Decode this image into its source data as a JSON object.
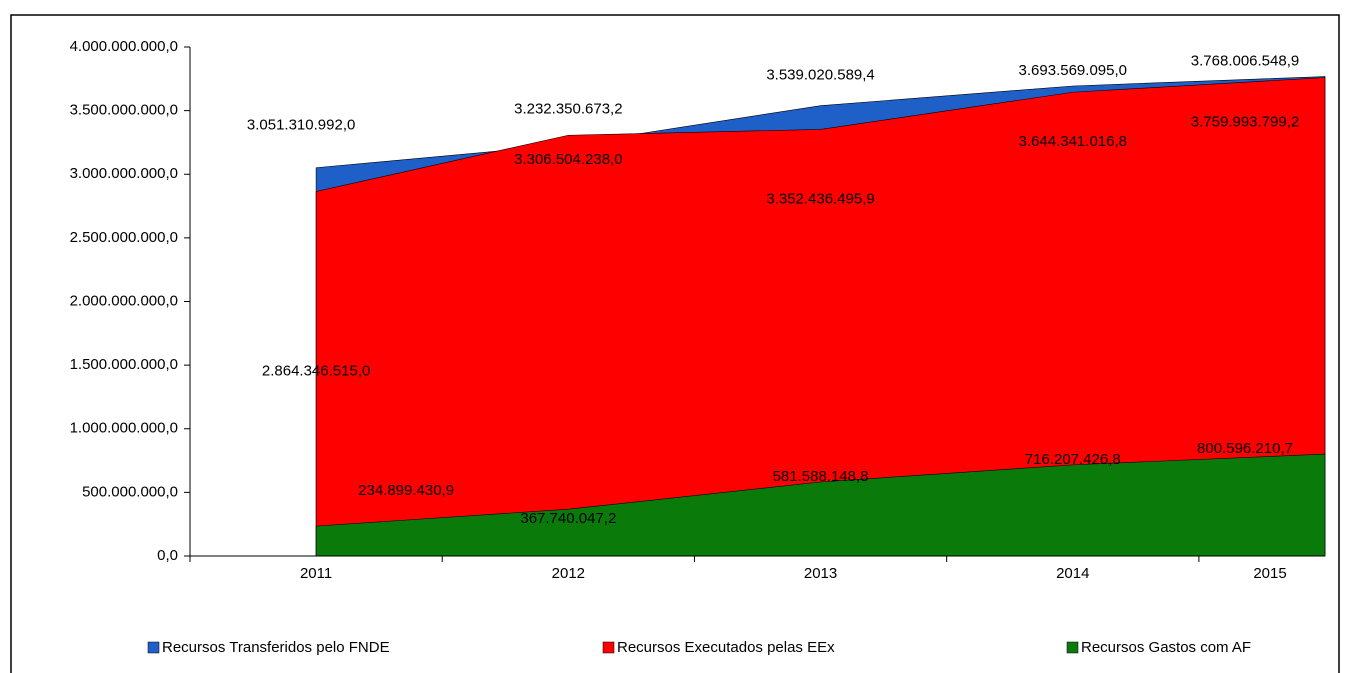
{
  "chart_data": {
    "type": "area",
    "categories": [
      "2011",
      "2012",
      "2013",
      "2014",
      "2015"
    ],
    "series": [
      {
        "name": "Recursos Transferidos pelo FNDE",
        "color": "#1f5fc8",
        "values": [
          3051310992.0,
          3232350673.2,
          3539020589.4,
          3693569095.0,
          3768006548.9
        ],
        "value_labels": [
          "3.051.310.992,0",
          "3.232.350.673,2",
          "3.539.020.589,4",
          "3.693.569.095,0",
          "3.768.006.548,9"
        ]
      },
      {
        "name": "Recursos Executados pelas EEx",
        "color": "#ff0000",
        "values": [
          2864346515.0,
          3306504238.0,
          3352436495.9,
          3644341016.8,
          3759993799.2
        ],
        "value_labels": [
          "2.864.346.515,0",
          "3.306.504.238,0",
          "3.352.436.495,9",
          "3.644.341.016,8",
          "3.759.993.799,2"
        ]
      },
      {
        "name": "Recursos Gastos com AF",
        "color": "#0a7a0a",
        "values": [
          234899430.9,
          367740047.2,
          581588148.8,
          716207426.8,
          800596210.7
        ],
        "value_labels": [
          "234.899.430,9",
          "367.740.047,2",
          "581.588.148,8",
          "716.207.426,8",
          "800.596.210,7"
        ]
      }
    ],
    "ylim": [
      0,
      4000000000
    ],
    "yticks": [
      {
        "value": 0,
        "label": "0,0"
      },
      {
        "value": 500000000,
        "label": "500.000.000,0"
      },
      {
        "value": 1000000000,
        "label": "1.000.000.000,0"
      },
      {
        "value": 1500000000,
        "label": "1.500.000.000,0"
      },
      {
        "value": 2000000000,
        "label": "2.000.000.000,0"
      },
      {
        "value": 2500000000,
        "label": "2.500.000.000,0"
      },
      {
        "value": 3000000000,
        "label": "3.000.000.000,0"
      },
      {
        "value": 3500000000,
        "label": "3.500.000.000,0"
      },
      {
        "value": 4000000000,
        "label": "4.000.000.000,0"
      }
    ],
    "legend": "bottom"
  }
}
